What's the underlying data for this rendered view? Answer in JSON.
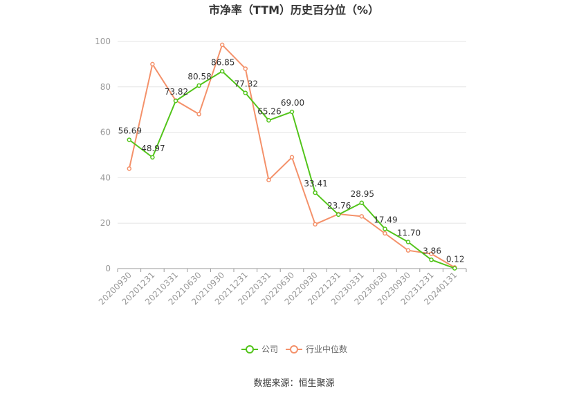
{
  "chart_data": {
    "type": "line",
    "title": "市净率（TTM）历史百分位（%）",
    "categories": [
      "20200930",
      "20201231",
      "20210331",
      "20210630",
      "20210930",
      "20211231",
      "20220331",
      "20220630",
      "20220930",
      "20221231",
      "20230331",
      "20230630",
      "20230930",
      "20231231",
      "20240131"
    ],
    "series": [
      {
        "name": "公司",
        "color": "#52c41a",
        "values": [
          56.69,
          48.97,
          73.82,
          80.58,
          86.85,
          77.32,
          65.26,
          69.0,
          33.41,
          23.76,
          28.95,
          17.49,
          11.7,
          3.86,
          0.12
        ],
        "labels": [
          "56.69",
          "48.97",
          "73.82",
          "80.58",
          "86.85",
          "77.32",
          "65.26",
          "69.00",
          "33.41",
          "23.76",
          "28.95",
          "17.49",
          "11.70",
          "3.86",
          "0.12"
        ]
      },
      {
        "name": "行业中位数",
        "color": "#f4916a",
        "values": [
          44,
          90,
          74,
          68,
          98.5,
          88,
          39,
          49,
          19.5,
          24,
          23,
          15.5,
          8,
          6.5,
          0.5
        ]
      }
    ],
    "yticks": [
      "0",
      "20",
      "40",
      "60",
      "80",
      "100"
    ],
    "ylim": [
      0,
      100
    ],
    "grid": true,
    "legend_position": "bottom-center",
    "source": "数据来源：恒生聚源"
  }
}
